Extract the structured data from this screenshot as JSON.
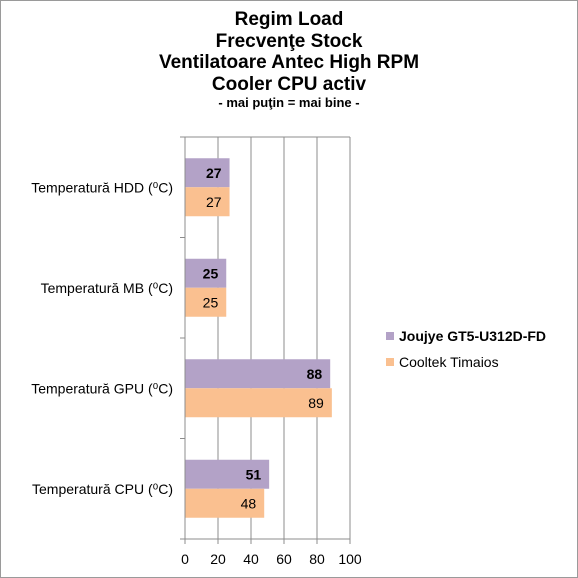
{
  "chart_data": {
    "type": "bar",
    "orientation": "horizontal",
    "title_lines": [
      "Regim Load",
      "Frecvenţe Stock",
      "Ventilatoare Antec High RPM",
      "Cooler CPU activ"
    ],
    "subtitle": "- mai puţin = mai bine -",
    "categories": [
      "Temperatură  HDD (⁰C)",
      "Temperatură  MB (⁰C)",
      "Temperatură  GPU (⁰C)",
      "Temperatură  CPU (⁰C)"
    ],
    "series": [
      {
        "name": "Joujye GT5-U312D-FD",
        "values": [
          27,
          25,
          88,
          51
        ],
        "color": "#b3a2c7"
      },
      {
        "name": "Cooltek Timaios",
        "values": [
          27,
          25,
          89,
          48
        ],
        "color": "#fac090"
      }
    ],
    "xlim": [
      0,
      100
    ],
    "xticks": [
      0,
      20,
      40,
      60,
      80,
      100
    ],
    "grid": true,
    "legend_position": "right"
  }
}
